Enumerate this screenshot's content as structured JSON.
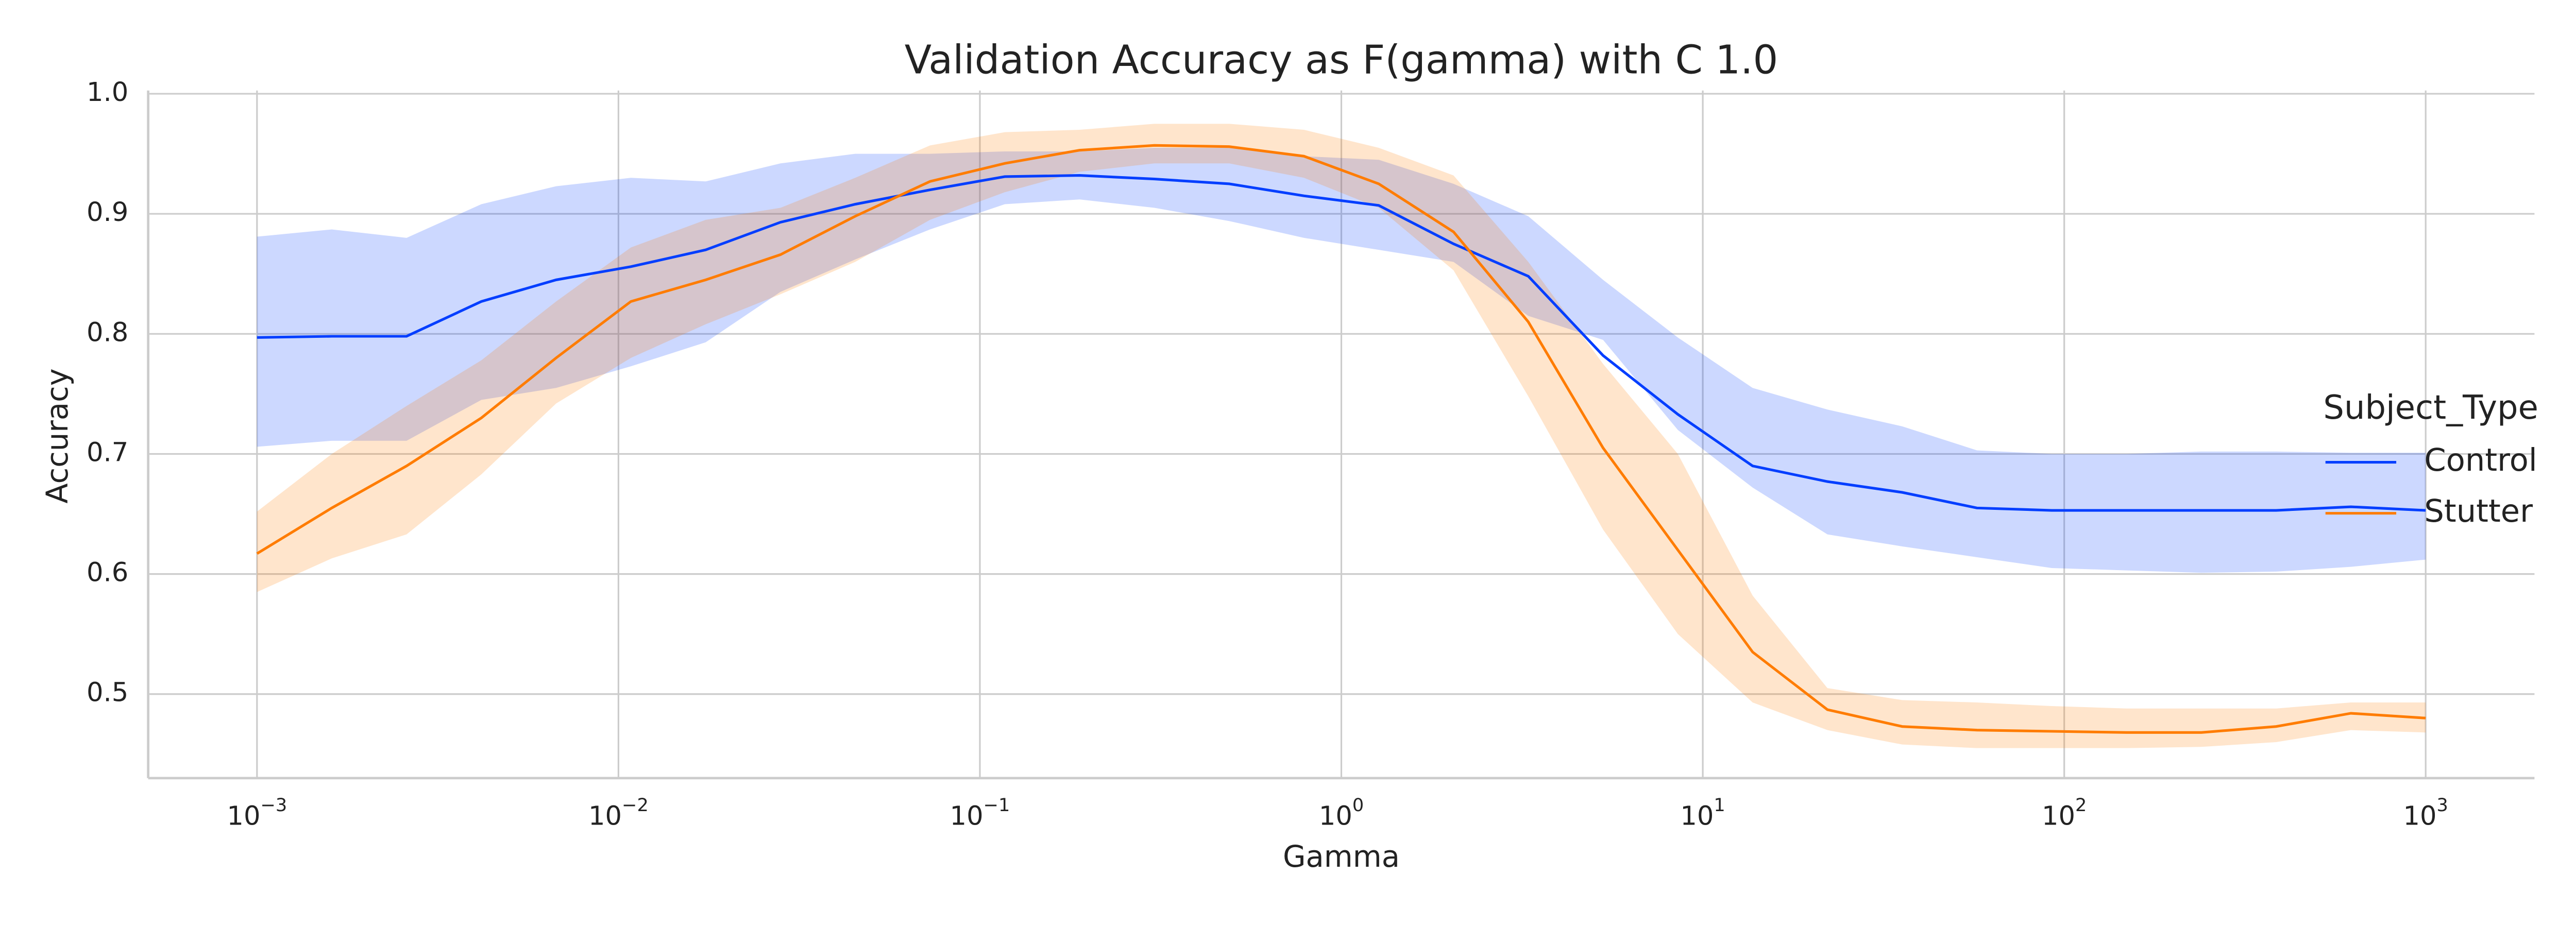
{
  "chart_data": {
    "type": "line",
    "title": "Validation Accuracy as F(gamma) with C 1.0",
    "x_label": "Gamma",
    "y_label": "Accuracy",
    "x_scale": "log",
    "grid": true,
    "legend": "center right",
    "legend_title": "Subject_Type",
    "x": [
      0.001,
      0.00161,
      0.002593,
      0.004175,
      0.006723,
      0.010826,
      0.017433,
      0.028072,
      0.045204,
      0.07279,
      0.11721,
      0.18874,
      0.30392,
      0.48939,
      0.78805,
      1.269,
      2.0434,
      3.2903,
      5.2983,
      8.5317,
      13.738,
      22.122,
      35.622,
      57.362,
      92.367,
      148.74,
      239.5,
      385.66,
      621.02,
      1000
    ],
    "xlim": [
      0.0005,
      2000
    ],
    "xticks": [
      {
        "value": 0.001,
        "base": "10",
        "exponent": "−3"
      },
      {
        "value": 0.01,
        "base": "10",
        "exponent": "−2"
      },
      {
        "value": 0.1,
        "base": "10",
        "exponent": "−1"
      },
      {
        "value": 1,
        "base": "10",
        "exponent": "0"
      },
      {
        "value": 10,
        "base": "10",
        "exponent": "1"
      },
      {
        "value": 100,
        "base": "10",
        "exponent": "2"
      },
      {
        "value": 1000,
        "base": "10",
        "exponent": "3"
      }
    ],
    "ylim": [
      0.43,
      1.0
    ],
    "yticks": [
      0.5,
      0.6,
      0.7,
      0.8,
      0.9,
      {
        "value": 1.0,
        "label": "1.0"
      }
    ],
    "series": [
      {
        "name": "Control",
        "color": "#023eff",
        "values": [
          0.797,
          0.798,
          0.798,
          0.827,
          0.845,
          0.856,
          0.87,
          0.893,
          0.908,
          0.92,
          0.931,
          0.932,
          0.929,
          0.925,
          0.915,
          0.907,
          0.875,
          0.848,
          0.782,
          0.733,
          0.69,
          0.677,
          0.668,
          0.655,
          0.653,
          0.653,
          0.653,
          0.653,
          0.656,
          0.653
        ],
        "upper": [
          0.881,
          0.887,
          0.88,
          0.908,
          0.923,
          0.93,
          0.927,
          0.942,
          0.95,
          0.95,
          0.952,
          0.952,
          0.955,
          0.955,
          0.948,
          0.945,
          0.925,
          0.898,
          0.845,
          0.797,
          0.755,
          0.737,
          0.723,
          0.703,
          0.7,
          0.7,
          0.702,
          0.702,
          0.701,
          0.701
        ],
        "lower": [
          0.706,
          0.711,
          0.711,
          0.745,
          0.755,
          0.773,
          0.793,
          0.835,
          0.862,
          0.887,
          0.908,
          0.912,
          0.905,
          0.894,
          0.88,
          0.87,
          0.86,
          0.815,
          0.795,
          0.72,
          0.672,
          0.633,
          0.623,
          0.614,
          0.605,
          0.603,
          0.601,
          0.602,
          0.606,
          0.612
        ]
      },
      {
        "name": "Stutter",
        "color": "#ff7c00",
        "values": [
          0.617,
          0.655,
          0.69,
          0.73,
          0.78,
          0.827,
          0.845,
          0.866,
          0.898,
          0.927,
          0.942,
          0.953,
          0.957,
          0.956,
          0.948,
          0.925,
          0.885,
          0.81,
          0.705,
          0.62,
          0.535,
          0.487,
          0.473,
          0.47,
          0.469,
          0.468,
          0.468,
          0.473,
          0.484,
          0.48
        ],
        "upper": [
          0.652,
          0.7,
          0.74,
          0.778,
          0.827,
          0.872,
          0.895,
          0.905,
          0.93,
          0.957,
          0.968,
          0.97,
          0.975,
          0.975,
          0.97,
          0.955,
          0.932,
          0.86,
          0.775,
          0.7,
          0.582,
          0.505,
          0.495,
          0.493,
          0.49,
          0.488,
          0.488,
          0.488,
          0.493,
          0.493
        ],
        "lower": [
          0.585,
          0.613,
          0.633,
          0.683,
          0.742,
          0.78,
          0.808,
          0.833,
          0.86,
          0.895,
          0.918,
          0.935,
          0.942,
          0.942,
          0.93,
          0.905,
          0.853,
          0.748,
          0.637,
          0.55,
          0.493,
          0.47,
          0.458,
          0.455,
          0.455,
          0.455,
          0.456,
          0.46,
          0.47,
          0.468
        ]
      }
    ]
  }
}
